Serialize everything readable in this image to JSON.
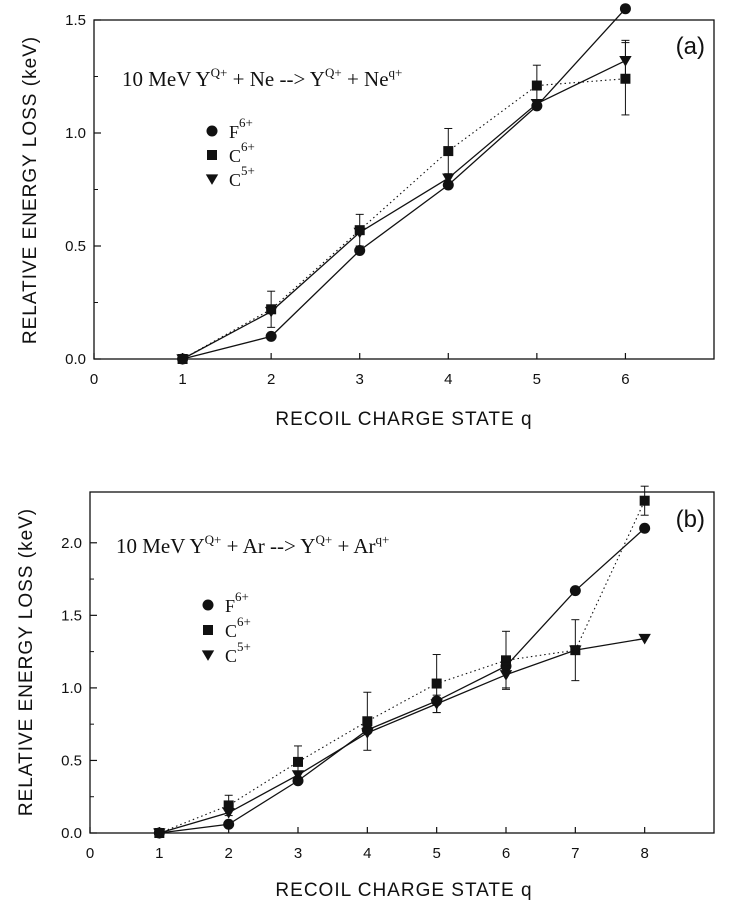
{
  "chart_data": [
    {
      "panel_label": "(a)",
      "type": "line",
      "annotation": {
        "parts": [
          "10 MeV Y",
          "Q+",
          " + Ne --> Y",
          "Q+",
          " + Ne",
          "q+"
        ]
      },
      "xlabel": "RECOIL CHARGE STATE q",
      "ylabel": "RELATIVE ENERGY LOSS (keV)",
      "xlim": [
        0,
        7
      ],
      "ylim": [
        0,
        1.5
      ],
      "x_ticks": [
        0,
        1,
        2,
        3,
        4,
        5,
        6
      ],
      "y_ticks": [
        0.0,
        0.5,
        1.0,
        1.5
      ],
      "y_tick_labels": [
        "0.0",
        "0.5",
        "1.0",
        "1.5"
      ],
      "series": [
        {
          "name": "F",
          "sup": "6+",
          "marker": "circle",
          "line": "solid",
          "x": [
            1,
            2,
            3,
            4,
            5,
            6
          ],
          "y": [
            0.0,
            0.1,
            0.48,
            0.77,
            1.12,
            1.55
          ]
        },
        {
          "name": "C",
          "sup": "6+",
          "marker": "square",
          "line": "dotted",
          "x": [
            1,
            2,
            3,
            4,
            5,
            6
          ],
          "y": [
            0.0,
            0.22,
            0.57,
            0.92,
            1.21,
            1.24
          ],
          "err": [
            0,
            0.08,
            0.07,
            0.1,
            0.09,
            0.16
          ]
        },
        {
          "name": "C",
          "sup": "5+",
          "marker": "triangle",
          "line": "solid",
          "x": [
            1,
            2,
            3,
            4,
            5,
            6
          ],
          "y": [
            0.0,
            0.21,
            0.56,
            0.8,
            1.13,
            1.32
          ],
          "err": [
            0,
            0,
            0,
            0,
            0,
            0.09
          ]
        }
      ]
    },
    {
      "panel_label": "(b)",
      "type": "line",
      "annotation": {
        "parts": [
          "10 MeV Y",
          "Q+",
          " + Ar --> Y",
          "Q+",
          " + Ar",
          "q+"
        ]
      },
      "xlabel": "RECOIL CHARGE STATE q",
      "ylabel": "RELATIVE ENERGY LOSS (keV)",
      "xlim": [
        0,
        9
      ],
      "ylim": [
        0,
        2.35
      ],
      "x_ticks": [
        0,
        1,
        2,
        3,
        4,
        5,
        6,
        7,
        8
      ],
      "y_ticks": [
        0.0,
        0.5,
        1.0,
        1.5,
        2.0
      ],
      "y_tick_labels": [
        "0.0",
        "0.5",
        "1.0",
        "1.5",
        "2.0"
      ],
      "series": [
        {
          "name": "F",
          "sup": "6+",
          "marker": "circle",
          "line": "solid",
          "x": [
            1,
            2,
            3,
            4,
            5,
            6,
            7,
            8
          ],
          "y": [
            0.0,
            0.06,
            0.36,
            0.71,
            0.91,
            1.15,
            1.67,
            2.1
          ]
        },
        {
          "name": "C",
          "sup": "6+",
          "marker": "square",
          "line": "dotted",
          "x": [
            1,
            2,
            3,
            4,
            5,
            6,
            7,
            8
          ],
          "y": [
            0.0,
            0.19,
            0.49,
            0.77,
            1.03,
            1.19,
            1.26,
            2.29
          ],
          "err": [
            0,
            0.07,
            0.11,
            0.2,
            0.2,
            0.2,
            0.21,
            0.1
          ]
        },
        {
          "name": "C",
          "sup": "5+",
          "marker": "triangle",
          "line": "solid",
          "x": [
            1,
            2,
            3,
            4,
            5,
            6,
            7,
            8
          ],
          "y": [
            0.0,
            0.14,
            0.4,
            0.69,
            0.89,
            1.09,
            1.26,
            1.34
          ],
          "err": [
            0,
            0,
            0,
            0,
            0.06,
            0.09,
            0,
            0
          ]
        }
      ]
    }
  ]
}
